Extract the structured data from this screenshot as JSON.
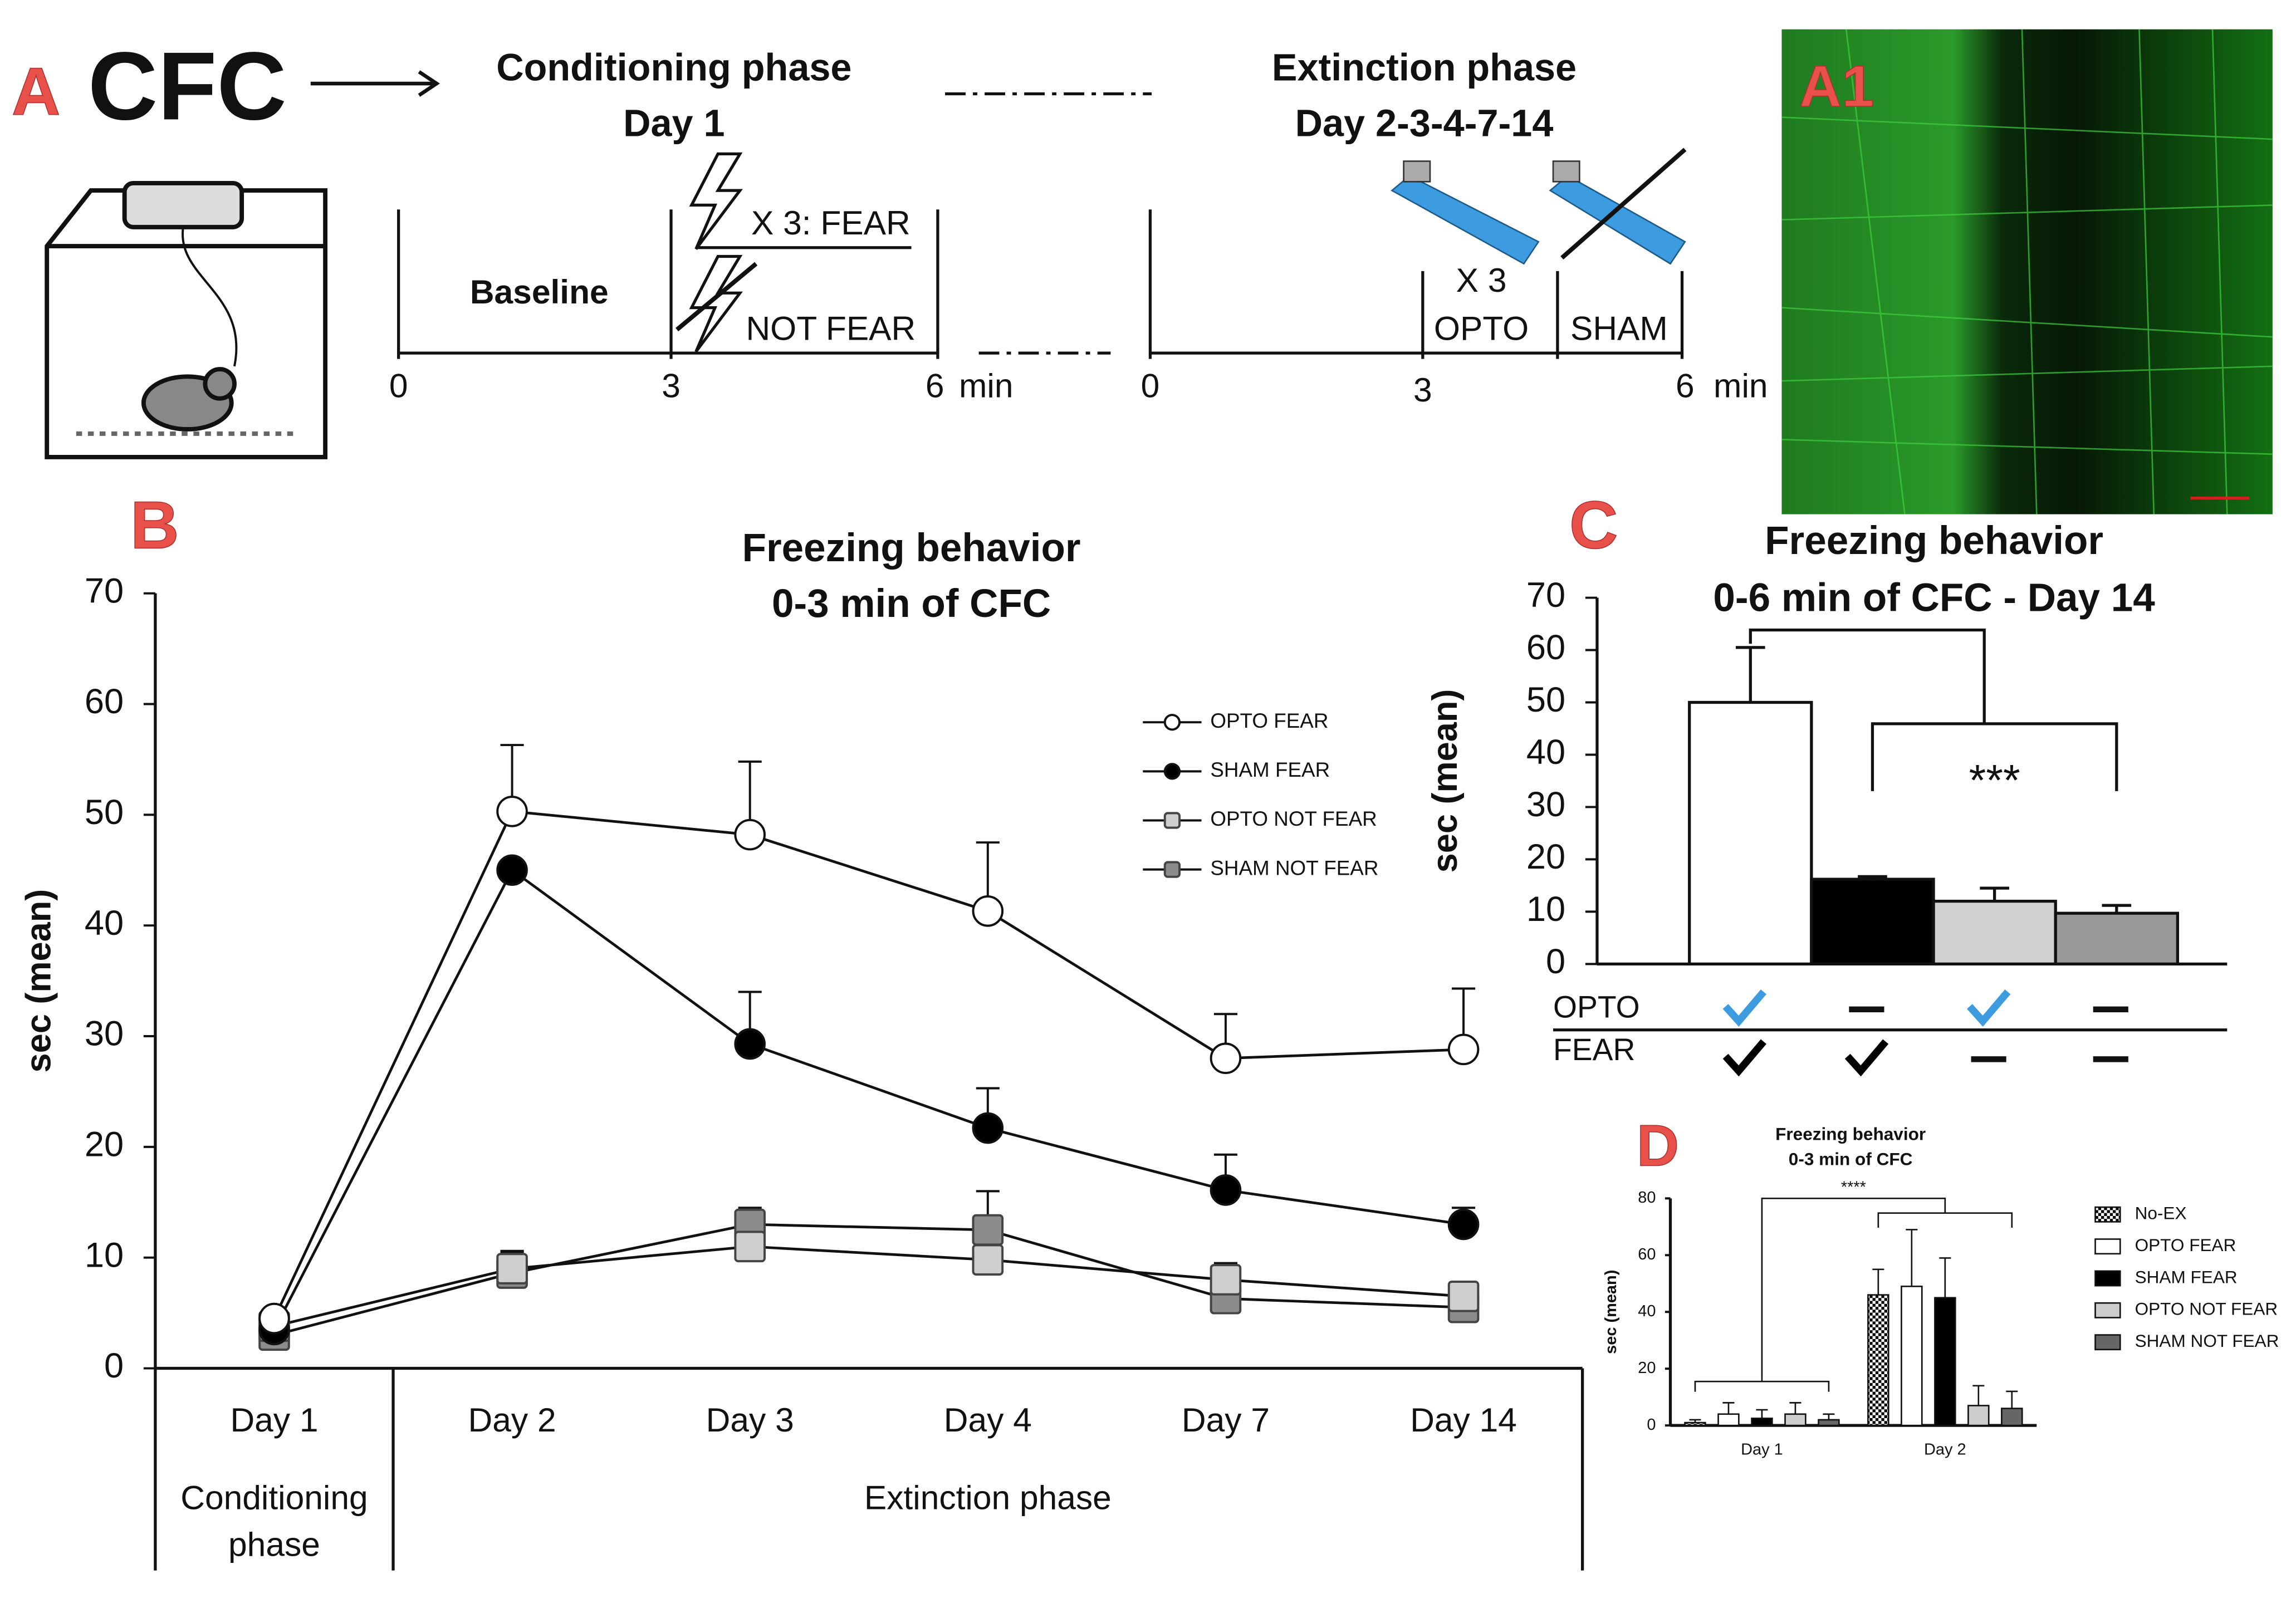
{
  "schematic": {
    "panel_label": "A",
    "title": "CFC",
    "image_label": "A1",
    "conditioning": {
      "title": "Conditioning phase",
      "day": "Day 1",
      "baseline": "Baseline",
      "shock": "X 3: FEAR",
      "no_shock": "NOT FEAR",
      "ticks": [
        0,
        3,
        6
      ],
      "unit": "min"
    },
    "extinction": {
      "title": "Extinction phase",
      "days": "Day 2-3-4-7-14",
      "repeat": "X 3",
      "opto": "OPTO",
      "sham": "SHAM",
      "ticks": [
        0,
        3,
        6
      ],
      "unit": "min"
    }
  },
  "chart_data": [
    {
      "type": "line",
      "panel_label": "B",
      "title": "Freezing behavior",
      "subtitle": "0-3 min of CFC",
      "y_label": "sec (mean)",
      "categories": [
        "Day 1",
        "Day 2",
        "Day 3",
        "Day 4",
        "Day 7",
        "Day 14"
      ],
      "groups": [
        {
          "label": "Conditioning phase",
          "size": 1
        },
        {
          "label": "Extinction phase",
          "size": 5
        }
      ],
      "ylim": [
        0,
        70
      ],
      "yticks": [
        0,
        10,
        20,
        30,
        40,
        50,
        60,
        70
      ],
      "series": [
        {
          "name": "OPTO FEAR",
          "color": "#ffffff",
          "marker": "circle",
          "values": [
            4.5,
            50.3,
            48.2,
            41.3,
            28,
            28.8
          ],
          "errors": [
            0.5,
            6,
            6.6,
            6.2,
            4,
            5.5
          ]
        },
        {
          "name": "SHAM FEAR",
          "color": "#000000",
          "marker": "circle",
          "values": [
            3.5,
            45,
            29.3,
            21.7,
            16.1,
            13
          ],
          "errors": [
            0.5,
            0.5,
            4.7,
            3.6,
            3.2,
            1.5
          ]
        },
        {
          "name": "OPTO NOT FEAR",
          "color": "#cfcfcf",
          "marker": "square",
          "values": [
            3.8,
            9,
            11,
            9.8,
            8,
            6.5
          ],
          "errors": [
            0.5,
            1.5,
            2,
            2,
            1.5,
            1
          ]
        },
        {
          "name": "SHAM NOT FEAR",
          "color": "#8c8c8c",
          "marker": "square",
          "values": [
            3,
            8.6,
            13,
            12.5,
            6.3,
            5.5
          ],
          "errors": [
            0.5,
            2,
            1.5,
            3.5,
            1.5,
            2
          ]
        }
      ]
    },
    {
      "type": "bar",
      "panel_label": "C",
      "title": "Freezing behavior",
      "subtitle": "0-6 min of CFC - Day 14",
      "y_label": "sec (mean)",
      "values": [
        50,
        16.2,
        12,
        9.7
      ],
      "errors": [
        10.5,
        0.5,
        2.5,
        1.5
      ],
      "colors": [
        "#ffffff",
        "#000000",
        "#d0d0d0",
        "#999999"
      ],
      "ylim": [
        0,
        70
      ],
      "yticks": [
        0,
        10,
        20,
        30,
        40,
        50,
        60,
        70
      ],
      "significance": "***",
      "conditions": [
        {
          "name": "OPTO",
          "color": "#3d9be0",
          "applied": [
            true,
            false,
            true,
            false
          ]
        },
        {
          "name": "FEAR",
          "color": "#000000",
          "applied": [
            true,
            true,
            false,
            false
          ]
        }
      ]
    },
    {
      "type": "bar",
      "panel_label": "D",
      "title": "Freezing behavior",
      "subtitle": "0-3 min of CFC",
      "y_label": "sec (mean)",
      "categories": [
        "Day 1",
        "Day 2"
      ],
      "ylim": [
        0,
        80
      ],
      "yticks": [
        0,
        20,
        40,
        60,
        80
      ],
      "significance": "****",
      "series": [
        {
          "name": "No-EX",
          "color": "#000000",
          "pattern": "checker",
          "values": [
            1,
            46
          ],
          "errors": [
            1,
            9
          ]
        },
        {
          "name": "OPTO FEAR",
          "color": "#ffffff",
          "values": [
            4,
            49
          ],
          "errors": [
            4,
            20
          ]
        },
        {
          "name": "SHAM FEAR",
          "color": "#000000",
          "values": [
            2.5,
            45
          ],
          "errors": [
            3,
            14
          ]
        },
        {
          "name": "OPTO NOT FEAR",
          "color": "#cccccc",
          "values": [
            4,
            7
          ],
          "errors": [
            4,
            7
          ]
        },
        {
          "name": "SHAM NOT FEAR",
          "color": "#666666",
          "values": [
            2,
            6
          ],
          "errors": [
            2,
            6
          ]
        }
      ]
    }
  ]
}
